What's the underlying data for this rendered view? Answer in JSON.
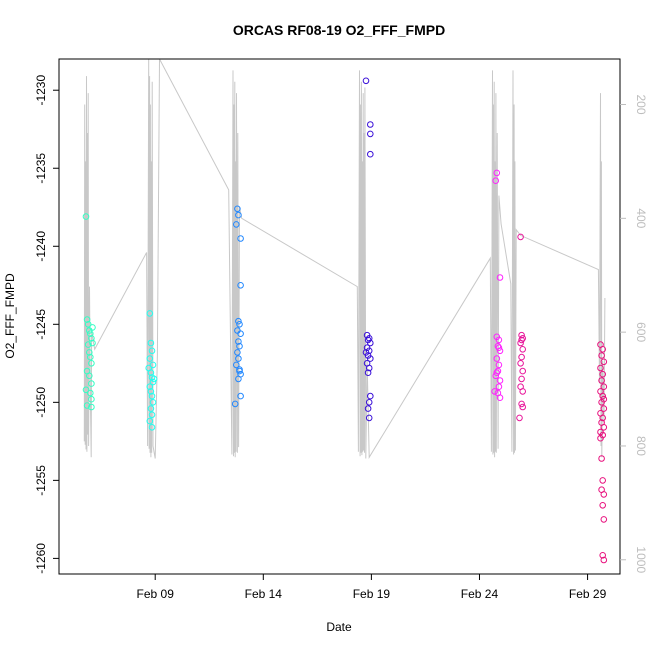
{
  "chart_data": {
    "type": "scatter",
    "title": "ORCAS RF08-19 O2_FFF_FMPD",
    "xlabel": "Date",
    "ylabel": "O2_FFF_FMPD",
    "x_ticks": [
      "Feb 09",
      "Feb 14",
      "Feb 19",
      "Feb 24",
      "Feb 29"
    ],
    "x_tick_days": [
      9,
      14,
      19,
      24,
      29
    ],
    "xlim_days": [
      4.55,
      30.5
    ],
    "ylim": [
      -1261.0,
      -1228.0
    ],
    "y_ticks": [
      -1230,
      -1235,
      -1240,
      -1245,
      -1250,
      -1255,
      -1260
    ],
    "y2_ticks": [
      200,
      400,
      600,
      800,
      1000
    ],
    "y2_lim": [
      1025,
      120
    ],
    "grid": false,
    "flight_colors": [
      "#33ffc4",
      "#22fff0",
      "#2288ff",
      "#3a10d8",
      "#ff22ff",
      "#e8159a",
      "#e8117e"
    ],
    "series": [
      {
        "color": "#33ffc4",
        "points": [
          [
            5.8,
            -1238.1
          ],
          [
            5.85,
            -1244.7
          ],
          [
            5.9,
            -1245.0
          ],
          [
            5.95,
            -1245.4
          ],
          [
            6.0,
            -1245.6
          ],
          [
            6.05,
            -1245.9
          ],
          [
            5.9,
            -1246.3
          ],
          [
            5.95,
            -1246.8
          ],
          [
            6.0,
            -1247.1
          ],
          [
            6.05,
            -1247.5
          ],
          [
            5.85,
            -1248.0
          ],
          [
            5.95,
            -1248.3
          ],
          [
            6.05,
            -1248.8
          ],
          [
            5.8,
            -1249.2
          ],
          [
            6.0,
            -1249.4
          ],
          [
            6.05,
            -1249.8
          ],
          [
            5.85,
            -1250.2
          ],
          [
            6.05,
            -1250.3
          ],
          [
            6.1,
            -1245.2
          ],
          [
            6.1,
            -1246.2
          ]
        ]
      },
      {
        "color": "#22fff0",
        "points": [
          [
            8.75,
            -1244.3
          ],
          [
            8.8,
            -1246.2
          ],
          [
            8.85,
            -1246.7
          ],
          [
            8.75,
            -1247.2
          ],
          [
            8.9,
            -1247.6
          ],
          [
            8.8,
            -1248.1
          ],
          [
            8.85,
            -1248.4
          ],
          [
            8.9,
            -1248.7
          ],
          [
            8.75,
            -1249.0
          ],
          [
            8.8,
            -1249.3
          ],
          [
            8.85,
            -1249.6
          ],
          [
            8.9,
            -1250.0
          ],
          [
            8.8,
            -1250.4
          ],
          [
            8.85,
            -1250.8
          ],
          [
            8.75,
            -1251.2
          ],
          [
            8.85,
            -1251.6
          ],
          [
            8.95,
            -1248.5
          ],
          [
            8.7,
            -1247.8
          ]
        ]
      },
      {
        "color": "#2288ff",
        "points": [
          [
            12.8,
            -1237.6
          ],
          [
            12.85,
            -1238.0
          ],
          [
            12.75,
            -1238.6
          ],
          [
            12.95,
            -1239.5
          ],
          [
            12.95,
            -1242.5
          ],
          [
            12.85,
            -1244.8
          ],
          [
            12.9,
            -1245.0
          ],
          [
            12.8,
            -1245.4
          ],
          [
            12.95,
            -1245.6
          ],
          [
            12.85,
            -1246.1
          ],
          [
            12.9,
            -1246.4
          ],
          [
            12.8,
            -1246.8
          ],
          [
            12.85,
            -1247.2
          ],
          [
            12.75,
            -1247.6
          ],
          [
            12.9,
            -1248.0
          ],
          [
            12.95,
            -1248.2
          ],
          [
            12.85,
            -1248.5
          ],
          [
            12.95,
            -1249.6
          ],
          [
            12.7,
            -1250.1
          ],
          [
            12.9,
            -1247.9
          ]
        ]
      },
      {
        "color": "#3a10d8",
        "points": [
          [
            18.75,
            -1229.4
          ],
          [
            18.95,
            -1232.2
          ],
          [
            18.95,
            -1232.8
          ],
          [
            18.95,
            -1234.1
          ],
          [
            18.8,
            -1245.7
          ],
          [
            18.9,
            -1245.9
          ],
          [
            18.85,
            -1246.0
          ],
          [
            18.95,
            -1246.2
          ],
          [
            18.8,
            -1246.5
          ],
          [
            18.9,
            -1246.7
          ],
          [
            18.85,
            -1247.0
          ],
          [
            18.95,
            -1247.2
          ],
          [
            18.8,
            -1247.5
          ],
          [
            18.9,
            -1247.8
          ],
          [
            18.85,
            -1248.1
          ],
          [
            18.95,
            -1249.6
          ],
          [
            18.9,
            -1250.0
          ],
          [
            18.85,
            -1250.4
          ],
          [
            18.9,
            -1251.0
          ],
          [
            18.75,
            -1246.8
          ]
        ]
      },
      {
        "color": "#ff22ff",
        "points": [
          [
            24.8,
            -1235.3
          ],
          [
            24.75,
            -1235.8
          ],
          [
            24.95,
            -1242.0
          ],
          [
            24.8,
            -1245.8
          ],
          [
            24.9,
            -1246.0
          ],
          [
            24.85,
            -1246.4
          ],
          [
            24.95,
            -1246.7
          ],
          [
            24.8,
            -1247.2
          ],
          [
            24.9,
            -1247.6
          ],
          [
            24.85,
            -1248.0
          ],
          [
            24.75,
            -1248.3
          ],
          [
            24.95,
            -1248.6
          ],
          [
            24.9,
            -1249.0
          ],
          [
            24.85,
            -1249.4
          ],
          [
            24.95,
            -1249.7
          ],
          [
            24.7,
            -1249.3
          ],
          [
            24.8,
            -1248.1
          ],
          [
            24.9,
            -1246.5
          ]
        ]
      },
      {
        "color": "#e8159a",
        "points": [
          [
            25.9,
            -1239.4
          ],
          [
            25.95,
            -1245.7
          ],
          [
            26.0,
            -1245.9
          ],
          [
            25.9,
            -1246.2
          ],
          [
            26.0,
            -1246.6
          ],
          [
            25.95,
            -1247.1
          ],
          [
            25.9,
            -1247.5
          ],
          [
            26.0,
            -1248.0
          ],
          [
            25.95,
            -1248.5
          ],
          [
            25.9,
            -1249.0
          ],
          [
            26.0,
            -1249.3
          ],
          [
            25.95,
            -1250.1
          ],
          [
            26.0,
            -1250.3
          ],
          [
            25.85,
            -1251.0
          ],
          [
            25.95,
            -1246.0
          ]
        ]
      },
      {
        "color": "#e8117e",
        "points": [
          [
            29.6,
            -1246.3
          ],
          [
            29.7,
            -1246.6
          ],
          [
            29.65,
            -1247.0
          ],
          [
            29.75,
            -1247.4
          ],
          [
            29.6,
            -1247.8
          ],
          [
            29.7,
            -1248.2
          ],
          [
            29.65,
            -1248.6
          ],
          [
            29.75,
            -1249.0
          ],
          [
            29.6,
            -1249.3
          ],
          [
            29.7,
            -1249.6
          ],
          [
            29.65,
            -1250.0
          ],
          [
            29.75,
            -1250.4
          ],
          [
            29.6,
            -1250.7
          ],
          [
            29.7,
            -1251.0
          ],
          [
            29.65,
            -1251.3
          ],
          [
            29.75,
            -1251.6
          ],
          [
            29.6,
            -1251.9
          ],
          [
            29.7,
            -1252.1
          ],
          [
            29.65,
            -1253.6
          ],
          [
            29.7,
            -1255.0
          ],
          [
            29.65,
            -1255.6
          ],
          [
            29.75,
            -1255.9
          ],
          [
            29.7,
            -1256.6
          ],
          [
            29.75,
            -1257.5
          ],
          [
            29.7,
            -1259.8
          ],
          [
            29.75,
            -1260.1
          ],
          [
            29.6,
            -1252.3
          ],
          [
            29.75,
            -1249.8
          ]
        ]
      }
    ],
    "altitude_trace": {
      "color": "#c8c8c8",
      "points": [
        [
          5.72,
          792
        ],
        [
          5.74,
          200
        ],
        [
          5.76,
          798
        ],
        [
          5.78,
          300
        ],
        [
          5.8,
          806
        ],
        [
          5.82,
          150
        ],
        [
          5.84,
          810
        ],
        [
          5.86,
          250
        ],
        [
          5.88,
          780
        ],
        [
          5.9,
          180
        ],
        [
          5.92,
          800
        ],
        [
          5.96,
          520
        ],
        [
          6.0,
          700
        ],
        [
          6.04,
          820
        ],
        [
          6.06,
          600
        ],
        [
          6.2,
          630
        ],
        [
          8.6,
          460
        ],
        [
          8.65,
          800
        ],
        [
          8.7,
          120
        ],
        [
          8.72,
          805
        ],
        [
          8.74,
          150
        ],
        [
          8.76,
          812
        ],
        [
          8.78,
          200
        ],
        [
          8.8,
          820
        ],
        [
          8.82,
          300
        ],
        [
          8.84,
          812
        ],
        [
          8.86,
          160
        ],
        [
          8.9,
          800
        ],
        [
          9.0,
          822
        ],
        [
          9.1,
          640
        ],
        [
          9.2,
          120
        ],
        [
          12.4,
          350
        ],
        [
          12.55,
          815
        ],
        [
          12.6,
          140
        ],
        [
          12.62,
          818
        ],
        [
          12.64,
          200
        ],
        [
          12.66,
          812
        ],
        [
          12.68,
          160
        ],
        [
          12.7,
          820
        ],
        [
          12.72,
          300
        ],
        [
          12.74,
          810
        ],
        [
          12.76,
          180
        ],
        [
          12.8,
          812
        ],
        [
          12.82,
          250
        ],
        [
          12.86,
          802
        ],
        [
          12.9,
          380
        ],
        [
          13.0,
          400
        ],
        [
          18.35,
          520
        ],
        [
          18.4,
          810
        ],
        [
          18.45,
          140
        ],
        [
          18.48,
          818
        ],
        [
          18.5,
          200
        ],
        [
          18.52,
          812
        ],
        [
          18.54,
          160
        ],
        [
          18.56,
          816
        ],
        [
          18.58,
          300
        ],
        [
          18.6,
          810
        ],
        [
          18.62,
          180
        ],
        [
          18.64,
          808
        ],
        [
          18.66,
          250
        ],
        [
          18.68,
          812
        ],
        [
          18.7,
          170
        ],
        [
          18.74,
          822
        ],
        [
          18.8,
          650
        ],
        [
          18.9,
          820
        ],
        [
          24.5,
          470
        ],
        [
          24.55,
          810
        ],
        [
          24.6,
          140
        ],
        [
          24.62,
          815
        ],
        [
          24.64,
          200
        ],
        [
          24.66,
          812
        ],
        [
          24.68,
          160
        ],
        [
          24.7,
          820
        ],
        [
          24.72,
          300
        ],
        [
          24.74,
          810
        ],
        [
          24.76,
          180
        ],
        [
          24.78,
          812
        ],
        [
          24.82,
          250
        ],
        [
          24.86,
          805
        ],
        [
          24.9,
          360
        ],
        [
          25.0,
          410
        ],
        [
          25.45,
          515
        ],
        [
          25.5,
          810
        ],
        [
          25.55,
          140
        ],
        [
          25.58,
          815
        ],
        [
          25.6,
          200
        ],
        [
          25.62,
          812
        ],
        [
          25.64,
          300
        ],
        [
          25.66,
          808
        ],
        [
          25.7,
          420
        ],
        [
          25.9,
          430
        ],
        [
          29.5,
          490
        ],
        [
          29.55,
          690
        ],
        [
          29.6,
          180
        ],
        [
          29.62,
          800
        ],
        [
          29.64,
          300
        ],
        [
          29.66,
          820
        ],
        [
          29.7,
          650
        ],
        [
          29.76,
          760
        ],
        [
          29.8,
          540
        ]
      ]
    }
  }
}
